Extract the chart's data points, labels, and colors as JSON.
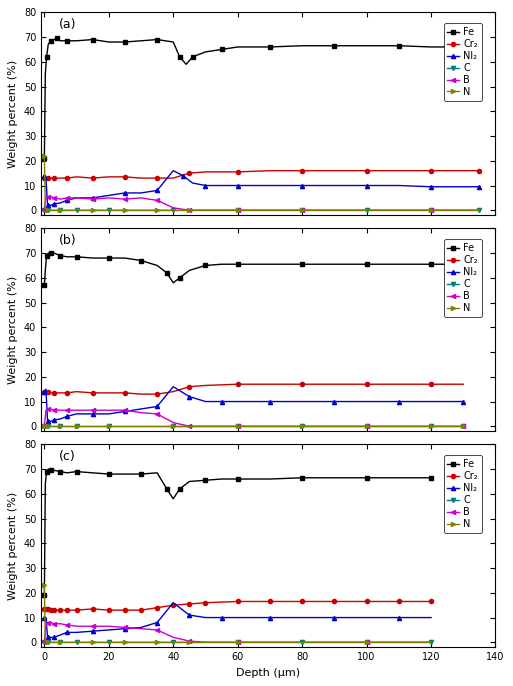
{
  "panels": [
    "(a)",
    "(b)",
    "(c)"
  ],
  "colors": {
    "Fe": "#000000",
    "Cr": "#cc0000",
    "Ni": "#0000cc",
    "C": "#008080",
    "B": "#cc00cc",
    "N": "#808000"
  },
  "markers": {
    "Fe": "s",
    "Cr": "o",
    "Ni": "^",
    "C": "v",
    "B": "<",
    "N": ">"
  },
  "legend_labels": [
    "Fe",
    "Cr₂",
    "Nl₂",
    "C",
    "B",
    "N"
  ],
  "ylabel": "Weight percent (%)",
  "xlabel": "Depth (μm)",
  "ylim": [
    -2,
    80
  ],
  "yticks": [
    0,
    10,
    20,
    30,
    40,
    50,
    60,
    70,
    80
  ],
  "panel_a": {
    "xlim": [
      -1,
      140
    ],
    "xticks": [
      0,
      20,
      40,
      60,
      80,
      100,
      120,
      140
    ],
    "Fe_x": [
      0,
      0.3,
      0.7,
      1.2,
      2,
      3,
      4,
      5,
      7,
      10,
      15,
      20,
      25,
      30,
      35,
      40,
      42,
      44,
      46,
      50,
      55,
      60,
      70,
      80,
      90,
      100,
      110,
      120,
      130,
      135
    ],
    "Fe_y": [
      21,
      55,
      62,
      67,
      68.5,
      69,
      69.5,
      68.5,
      68.5,
      68.5,
      69,
      68,
      68,
      68.5,
      69,
      68,
      62,
      59,
      62,
      64,
      65,
      66,
      66,
      66.5,
      66.5,
      66.5,
      66.5,
      66,
      66,
      66
    ],
    "Cr_x": [
      0,
      0.5,
      1,
      2,
      3,
      5,
      7,
      10,
      15,
      20,
      25,
      30,
      35,
      40,
      45,
      50,
      60,
      70,
      80,
      90,
      100,
      110,
      120,
      130,
      135
    ],
    "Cr_y": [
      13,
      13,
      13,
      13,
      13,
      13,
      13,
      13.5,
      13,
      13.5,
      13.5,
      13,
      13,
      13,
      15,
      15.5,
      15.5,
      16,
      16,
      16,
      16,
      16,
      16,
      16,
      16
    ],
    "Ni_x": [
      0,
      0.5,
      1,
      2,
      3,
      5,
      7,
      10,
      15,
      20,
      25,
      30,
      35,
      40,
      43,
      46,
      50,
      55,
      60,
      70,
      80,
      90,
      100,
      110,
      120,
      130,
      135
    ],
    "Ni_y": [
      14,
      13,
      2,
      2,
      2.5,
      3,
      4,
      5,
      5,
      6,
      7,
      7,
      8,
      16,
      14,
      11,
      10,
      10,
      10,
      10,
      10,
      10,
      10,
      10,
      9.5,
      9.5,
      9.5
    ],
    "C_x": [
      0,
      1,
      5,
      10,
      20,
      40,
      60,
      80,
      100,
      120,
      135
    ],
    "C_y": [
      0,
      0,
      0,
      0,
      0,
      0,
      0,
      0,
      0,
      0,
      0
    ],
    "B_x": [
      0,
      0.5,
      1,
      2,
      3,
      5,
      7,
      10,
      15,
      20,
      25,
      30,
      35,
      40,
      45,
      50,
      60,
      70,
      80,
      100,
      120,
      135
    ],
    "B_y": [
      0,
      5.5,
      5.5,
      5.5,
      5,
      4.5,
      5,
      5,
      4.5,
      5,
      4.5,
      5,
      4,
      1,
      0,
      0,
      0,
      0,
      0,
      0,
      0,
      0
    ],
    "N_x": [
      0,
      0.3,
      1,
      2,
      5,
      10,
      15,
      20,
      25,
      30,
      35,
      40,
      45,
      50,
      60,
      70,
      80,
      100,
      120,
      135
    ],
    "N_y": [
      22,
      0,
      0,
      0,
      0,
      0,
      0,
      0,
      0,
      0,
      0,
      0,
      0,
      0,
      0,
      0,
      0,
      0,
      0,
      0
    ]
  },
  "panel_b": {
    "xlim": [
      -1,
      140
    ],
    "xticks": [
      0,
      20,
      40,
      60,
      80,
      100,
      120,
      140
    ],
    "Fe_x": [
      0,
      0.3,
      0.7,
      1.2,
      2,
      3,
      5,
      7,
      10,
      15,
      20,
      25,
      30,
      35,
      38,
      40,
      42,
      45,
      50,
      55,
      60,
      70,
      80,
      90,
      100,
      110,
      120,
      130
    ],
    "Fe_y": [
      57,
      63,
      69,
      70,
      70,
      70,
      69,
      68.5,
      68.5,
      68,
      68,
      68,
      67,
      65,
      62,
      58,
      60,
      63,
      65,
      65.5,
      65.5,
      65.5,
      65.5,
      65.5,
      65.5,
      65.5,
      65.5,
      65.5
    ],
    "Cr_x": [
      0,
      0.5,
      1,
      2,
      3,
      5,
      7,
      10,
      15,
      20,
      25,
      30,
      35,
      40,
      45,
      50,
      60,
      70,
      80,
      90,
      100,
      110,
      120,
      130
    ],
    "Cr_y": [
      14,
      14,
      14,
      13.5,
      13.5,
      13.5,
      13.5,
      14,
      13.5,
      13.5,
      13.5,
      13,
      13,
      14,
      16,
      16.5,
      17,
      17,
      17,
      17,
      17,
      17,
      17,
      17
    ],
    "Ni_x": [
      0,
      0.5,
      1,
      2,
      3,
      5,
      7,
      10,
      15,
      20,
      25,
      30,
      35,
      40,
      45,
      50,
      55,
      60,
      70,
      80,
      90,
      100,
      110,
      120,
      130
    ],
    "Ni_y": [
      14,
      15,
      2,
      2,
      2.5,
      3,
      4,
      5,
      5,
      5,
      6,
      7,
      8,
      16,
      12,
      10,
      10,
      10,
      10,
      10,
      10,
      10,
      10,
      10,
      10
    ],
    "C_x": [
      0,
      1,
      5,
      10,
      20,
      40,
      60,
      80,
      100,
      120,
      130
    ],
    "C_y": [
      0,
      0,
      0,
      0,
      0,
      0,
      0,
      0,
      0,
      0,
      0
    ],
    "B_x": [
      0,
      0.5,
      1,
      2,
      3,
      5,
      7,
      10,
      15,
      20,
      25,
      30,
      35,
      40,
      45,
      50,
      60,
      80,
      100,
      120,
      130
    ],
    "B_y": [
      0,
      6.5,
      7,
      7,
      6.5,
      6.5,
      6.5,
      6.5,
      6.5,
      6.5,
      6.5,
      5.5,
      5,
      1.5,
      0,
      0,
      0,
      0,
      0,
      0,
      0
    ],
    "N_x": [
      0,
      1,
      5,
      10,
      20,
      40,
      60,
      80,
      100,
      120,
      130
    ],
    "N_y": [
      0,
      0,
      0,
      0,
      0,
      0,
      0,
      0,
      0,
      0,
      0
    ]
  },
  "panel_c": {
    "xlim": [
      -1,
      140
    ],
    "xticks": [
      0,
      20,
      40,
      60,
      80,
      100,
      120,
      140
    ],
    "Fe_x": [
      0,
      0.3,
      0.7,
      1.2,
      2,
      3,
      5,
      7,
      10,
      15,
      20,
      25,
      30,
      35,
      38,
      40,
      42,
      45,
      50,
      55,
      60,
      70,
      80,
      90,
      100,
      110,
      120
    ],
    "Fe_y": [
      19,
      64,
      69,
      70,
      69.5,
      69.5,
      69,
      68.5,
      69,
      68.5,
      68,
      68,
      68,
      68.5,
      62,
      58,
      62,
      65,
      65.5,
      66,
      66,
      66,
      66.5,
      66.5,
      66.5,
      66.5,
      66.5
    ],
    "Cr_x": [
      0,
      0.5,
      1,
      2,
      3,
      5,
      7,
      10,
      15,
      20,
      25,
      30,
      35,
      40,
      45,
      50,
      60,
      70,
      80,
      90,
      100,
      110,
      120
    ],
    "Cr_y": [
      13.5,
      13.5,
      13.5,
      13,
      13,
      13,
      13,
      13,
      13.5,
      13,
      13,
      13,
      14,
      15,
      15.5,
      16,
      16.5,
      16.5,
      16.5,
      16.5,
      16.5,
      16.5,
      16.5
    ],
    "Ni_x": [
      0,
      0.5,
      1,
      2,
      3,
      5,
      7,
      10,
      15,
      20,
      25,
      30,
      35,
      40,
      45,
      50,
      55,
      60,
      70,
      80,
      90,
      100,
      110,
      120
    ],
    "Ni_y": [
      10,
      10,
      2,
      2,
      2,
      3,
      4,
      4,
      4.5,
      5,
      5.5,
      6,
      8,
      16,
      11,
      10,
      10,
      10,
      10,
      10,
      10,
      10,
      10,
      10
    ],
    "C_x": [
      0,
      1,
      5,
      10,
      20,
      40,
      60,
      80,
      100,
      120
    ],
    "C_y": [
      0,
      0,
      0,
      0,
      0,
      0,
      0,
      0,
      0,
      0
    ],
    "B_x": [
      0,
      0.5,
      1,
      2,
      3,
      5,
      7,
      10,
      15,
      20,
      25,
      30,
      35,
      40,
      45,
      50,
      60,
      80,
      100,
      120
    ],
    "B_y": [
      0,
      7,
      8,
      8,
      7.5,
      7.5,
      7,
      6.5,
      6.5,
      6.5,
      6,
      5.5,
      5,
      2,
      0.5,
      0,
      0,
      0,
      0,
      0
    ],
    "N_x": [
      0,
      0.3,
      1,
      2,
      5,
      10,
      15,
      20,
      25,
      30,
      35,
      40,
      45,
      50,
      60,
      80,
      100,
      120
    ],
    "N_y": [
      23,
      0,
      0,
      0,
      0,
      0,
      0,
      0,
      0,
      0,
      0,
      0,
      0,
      0,
      0,
      0,
      0,
      0
    ]
  },
  "background_color": "#ffffff",
  "title_fontsize": 9,
  "axis_fontsize": 8,
  "tick_fontsize": 7,
  "legend_fontsize": 7,
  "markersize": 3,
  "linewidth": 1.0
}
